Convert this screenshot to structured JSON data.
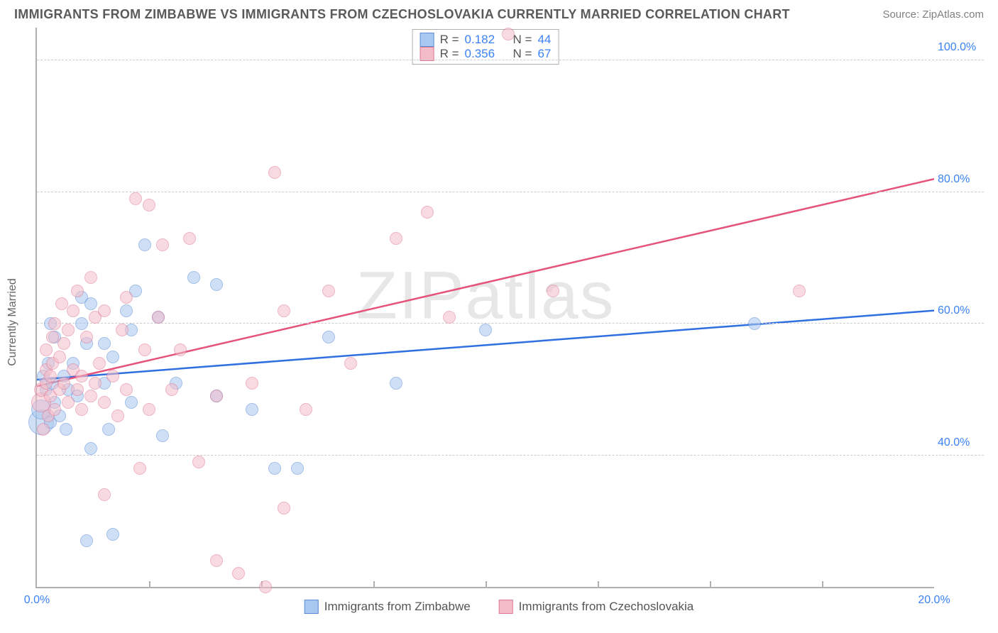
{
  "title": "IMMIGRANTS FROM ZIMBABWE VS IMMIGRANTS FROM CZECHOSLOVAKIA CURRENTLY MARRIED CORRELATION CHART",
  "source": "Source: ZipAtlas.com",
  "watermark": "ZIPatlas",
  "yaxis_label": "Currently Married",
  "chart": {
    "type": "scatter",
    "xlim": [
      0,
      20
    ],
    "ylim": [
      20,
      105
    ],
    "x_ticks": [
      {
        "v": 0,
        "l": "0.0%"
      },
      {
        "v": 20,
        "l": "20.0%"
      }
    ],
    "x_minor": [
      2.5,
      5,
      7.5,
      10,
      12.5,
      15,
      17.5
    ],
    "y_ticks": [
      {
        "v": 40,
        "l": "40.0%"
      },
      {
        "v": 60,
        "l": "60.0%"
      },
      {
        "v": 80,
        "l": "80.0%"
      },
      {
        "v": 100,
        "l": "100.0%"
      }
    ],
    "background_color": "#ffffff",
    "grid_color": "#cccccc",
    "axis_color": "#b0b0b0",
    "tick_label_color": "#3b82f6",
    "marker_radius": 9,
    "marker_opacity": 0.55,
    "series": [
      {
        "name": "Immigrants from Zimbabwe",
        "fill": "#a9c8ef",
        "stroke": "#5b8cd6",
        "line_color": "#2f6fe0",
        "line_width": 2.5,
        "R": "0.182",
        "N": "44",
        "trend": {
          "x1": 0,
          "y1": 51.5,
          "x2": 20,
          "y2": 62
        },
        "points": [
          [
            0.1,
            45,
            18
          ],
          [
            0.1,
            47,
            14
          ],
          [
            0.15,
            52,
            9
          ],
          [
            0.2,
            50,
            9
          ],
          [
            0.25,
            54,
            9
          ],
          [
            0.3,
            45,
            9
          ],
          [
            0.3,
            60,
            9
          ],
          [
            0.35,
            51,
            9
          ],
          [
            0.4,
            48,
            9
          ],
          [
            0.4,
            58,
            9
          ],
          [
            0.5,
            46,
            9
          ],
          [
            0.6,
            52,
            9
          ],
          [
            0.65,
            44,
            9
          ],
          [
            0.7,
            50,
            9
          ],
          [
            0.8,
            54,
            9
          ],
          [
            0.9,
            49,
            9
          ],
          [
            1.0,
            60,
            9
          ],
          [
            1.0,
            64,
            9
          ],
          [
            1.1,
            27,
            9
          ],
          [
            1.1,
            57,
            9
          ],
          [
            1.2,
            41,
            9
          ],
          [
            1.2,
            63,
            9
          ],
          [
            1.5,
            51,
            9
          ],
          [
            1.5,
            57,
            9
          ],
          [
            1.6,
            44,
            9
          ],
          [
            1.7,
            28,
            9
          ],
          [
            1.7,
            55,
            9
          ],
          [
            2.0,
            62,
            9
          ],
          [
            2.1,
            48,
            9
          ],
          [
            2.1,
            59,
            9
          ],
          [
            2.2,
            65,
            9
          ],
          [
            2.4,
            72,
            9
          ],
          [
            2.7,
            61,
            9
          ],
          [
            2.8,
            43,
            9
          ],
          [
            3.1,
            51,
            9
          ],
          [
            3.5,
            67,
            9
          ],
          [
            4.0,
            49,
            9
          ],
          [
            4.0,
            66,
            9
          ],
          [
            4.8,
            47,
            9
          ],
          [
            5.3,
            38,
            9
          ],
          [
            5.8,
            38,
            9
          ],
          [
            6.5,
            58,
            9
          ],
          [
            8.0,
            51,
            9
          ],
          [
            10.0,
            59,
            9
          ],
          [
            16.0,
            60,
            9
          ]
        ]
      },
      {
        "name": "Immigrants from Czechoslovakia",
        "fill": "#f4bcc9",
        "stroke": "#e07a96",
        "line_color": "#e5537a",
        "line_width": 2.5,
        "R": "0.356",
        "N": "67",
        "trend": {
          "x1": 0,
          "y1": 50.5,
          "x2": 20,
          "y2": 82
        },
        "points": [
          [
            0.1,
            48,
            14
          ],
          [
            0.1,
            50,
            10
          ],
          [
            0.15,
            44,
            9
          ],
          [
            0.2,
            51,
            9
          ],
          [
            0.2,
            53,
            9
          ],
          [
            0.2,
            56,
            9
          ],
          [
            0.25,
            46,
            9
          ],
          [
            0.3,
            49,
            9
          ],
          [
            0.3,
            52,
            9
          ],
          [
            0.35,
            54,
            9
          ],
          [
            0.35,
            58,
            9
          ],
          [
            0.4,
            47,
            9
          ],
          [
            0.4,
            60,
            9
          ],
          [
            0.5,
            50,
            9
          ],
          [
            0.5,
            55,
            9
          ],
          [
            0.55,
            63,
            9
          ],
          [
            0.6,
            51,
            9
          ],
          [
            0.6,
            57,
            9
          ],
          [
            0.7,
            48,
            9
          ],
          [
            0.7,
            59,
            9
          ],
          [
            0.8,
            53,
            9
          ],
          [
            0.8,
            62,
            9
          ],
          [
            0.9,
            50,
            9
          ],
          [
            0.9,
            65,
            9
          ],
          [
            1.0,
            47,
            9
          ],
          [
            1.0,
            52,
            9
          ],
          [
            1.1,
            58,
            9
          ],
          [
            1.2,
            49,
            9
          ],
          [
            1.2,
            67,
            9
          ],
          [
            1.3,
            51,
            9
          ],
          [
            1.3,
            61,
            9
          ],
          [
            1.4,
            54,
            9
          ],
          [
            1.5,
            34,
            9
          ],
          [
            1.5,
            48,
            9
          ],
          [
            1.5,
            62,
            9
          ],
          [
            1.7,
            52,
            9
          ],
          [
            1.8,
            46,
            9
          ],
          [
            1.9,
            59,
            9
          ],
          [
            2.0,
            50,
            9
          ],
          [
            2.0,
            64,
            9
          ],
          [
            2.2,
            79,
            9
          ],
          [
            2.3,
            38,
            9
          ],
          [
            2.4,
            56,
            9
          ],
          [
            2.5,
            47,
            9
          ],
          [
            2.5,
            78,
            9
          ],
          [
            2.7,
            61,
            9
          ],
          [
            2.8,
            72,
            9
          ],
          [
            3.0,
            50,
            9
          ],
          [
            3.2,
            56,
            9
          ],
          [
            3.4,
            73,
            9
          ],
          [
            3.6,
            39,
            9
          ],
          [
            4.0,
            49,
            9
          ],
          [
            4.0,
            24,
            9
          ],
          [
            4.5,
            22,
            9
          ],
          [
            4.8,
            51,
            9
          ],
          [
            5.1,
            20,
            9
          ],
          [
            5.3,
            83,
            9
          ],
          [
            5.5,
            32,
            9
          ],
          [
            5.5,
            62,
            9
          ],
          [
            6.0,
            47,
            9
          ],
          [
            6.5,
            65,
            9
          ],
          [
            7.0,
            54,
            9
          ],
          [
            8.0,
            73,
            9
          ],
          [
            8.7,
            77,
            9
          ],
          [
            9.2,
            61,
            9
          ],
          [
            10.5,
            104,
            9
          ],
          [
            11.5,
            65,
            9
          ],
          [
            17.0,
            65,
            9
          ]
        ]
      }
    ]
  },
  "legend_top_labels": {
    "R": "R =",
    "N": "N ="
  }
}
